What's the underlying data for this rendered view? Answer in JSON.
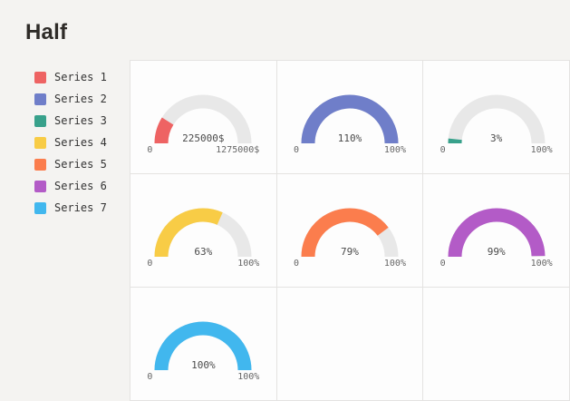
{
  "page": {
    "title": "Half"
  },
  "legend": {
    "items": [
      {
        "label": "Series 1",
        "color": "#ee6363"
      },
      {
        "label": "Series 2",
        "color": "#6f7ec9"
      },
      {
        "label": "Series 3",
        "color": "#38a18b"
      },
      {
        "label": "Series 4",
        "color": "#f8cc46"
      },
      {
        "label": "Series 5",
        "color": "#fb7d4d"
      },
      {
        "label": "Series 6",
        "color": "#b35bc7"
      },
      {
        "label": "Series 7",
        "color": "#41b7ee"
      }
    ]
  },
  "chart_data": {
    "type": "gauge",
    "variant": "half-donut",
    "title": "Half",
    "track_color": "#e8e8e8",
    "layout": {
      "columns": 3,
      "legend_position": "left",
      "grid": true
    },
    "gauges": [
      {
        "series": "Series 1",
        "color": "#ee6363",
        "value": 225000,
        "min": 0,
        "max": 1275000,
        "value_label": "225000$",
        "min_label": "0",
        "max_label": "1275000$"
      },
      {
        "series": "Series 2",
        "color": "#6f7ec9",
        "value": 110,
        "min": 0,
        "max": 100,
        "value_label": "110%",
        "min_label": "0",
        "max_label": "100%"
      },
      {
        "series": "Series 3",
        "color": "#38a18b",
        "value": 3,
        "min": 0,
        "max": 100,
        "value_label": "3%",
        "min_label": "0",
        "max_label": "100%"
      },
      {
        "series": "Series 4",
        "color": "#f8cc46",
        "value": 63,
        "min": 0,
        "max": 100,
        "value_label": "63%",
        "min_label": "0",
        "max_label": "100%"
      },
      {
        "series": "Series 5",
        "color": "#fb7d4d",
        "value": 79,
        "min": 0,
        "max": 100,
        "value_label": "79%",
        "min_label": "0",
        "max_label": "100%"
      },
      {
        "series": "Series 6",
        "color": "#b35bc7",
        "value": 99,
        "min": 0,
        "max": 100,
        "value_label": "99%",
        "min_label": "0",
        "max_label": "100%"
      },
      {
        "series": "Series 7",
        "color": "#41b7ee",
        "value": 100,
        "min": 0,
        "max": 100,
        "value_label": "100%",
        "min_label": "0",
        "max_label": "100%"
      }
    ]
  }
}
